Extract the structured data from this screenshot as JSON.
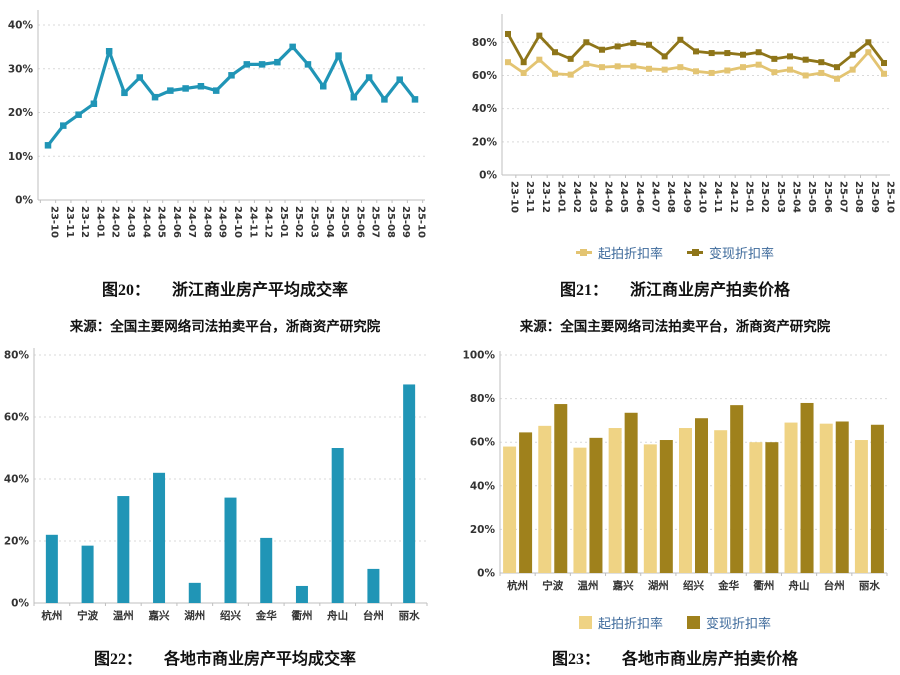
{
  "page": {
    "background": "#FFFFFF"
  },
  "colors": {
    "teal": "#2095B6",
    "gold_light_line": "#E3C472",
    "gold_dark_line": "#8E7519",
    "gold_light_bar": "#EFD384",
    "gold_dark_bar": "#9F811C",
    "legend_text": "#3E6A9B",
    "grid": "#D9D9D9",
    "axis": "#BFBFBF",
    "tick_text": "#333333",
    "caption_text": "#111111"
  },
  "figures": {
    "fig20": {
      "label": "图20：",
      "title": "浙江商业房产平均成交率",
      "source": "来源：全国主要网络司法拍卖平台，浙商资产研究院"
    },
    "fig21": {
      "label": "图21：",
      "title": "浙江商业房产拍卖价格",
      "source": "来源：全国主要网络司法拍卖平台，浙商资产研究院"
    },
    "fig22": {
      "label": "图22：",
      "title": "各地市商业房产平均成交率"
    },
    "fig23": {
      "label": "图23：",
      "title": "各地市商业房产拍卖价格"
    }
  },
  "chart_data": [
    {
      "id": "chart20",
      "type": "line",
      "title": "浙江商业房产平均成交率",
      "x": [
        "23-10",
        "23-11",
        "23-12",
        "24-01",
        "24-02",
        "24-03",
        "24-04",
        "24-05",
        "24-06",
        "24-07",
        "24-08",
        "24-09",
        "24-10",
        "24-11",
        "24-12",
        "25-01",
        "25-02",
        "25-03",
        "25-04",
        "25-05",
        "25-06",
        "25-07",
        "25-08",
        "25-09",
        "25-10"
      ],
      "series": [
        {
          "color": "#2095B6",
          "values": [
            12.5,
            17,
            19.5,
            22,
            34,
            24.5,
            28,
            23.5,
            25,
            25.5,
            26,
            25,
            28.5,
            31,
            31,
            31.5,
            35,
            31,
            26,
            33,
            23.5,
            28,
            23,
            27.5,
            23
          ]
        }
      ],
      "ylim": [
        0,
        40
      ],
      "yticks": [
        0,
        10,
        20,
        30,
        40
      ],
      "ytick_format": "percent",
      "grid": true,
      "legend": false
    },
    {
      "id": "chart21",
      "type": "line",
      "title": "浙江商业房产拍卖价格",
      "x": [
        "23-10",
        "23-11",
        "23-12",
        "24-01",
        "24-02",
        "24-03",
        "24-04",
        "24-05",
        "24-06",
        "24-07",
        "24-08",
        "24-09",
        "24-10",
        "24-11",
        "24-12",
        "25-01",
        "25-02",
        "25-03",
        "25-04",
        "25-05",
        "25-06",
        "25-07",
        "25-08",
        "25-09",
        "25-10"
      ],
      "series": [
        {
          "name": "起拍折扣率",
          "color": "#E3C472",
          "values": [
            68,
            61.5,
            69.5,
            61,
            60.5,
            67,
            65,
            65.5,
            65.5,
            64,
            63.5,
            65,
            62.5,
            61.5,
            63,
            65,
            66.5,
            62,
            63.5,
            60,
            61.5,
            58,
            63.5,
            74,
            61
          ]
        },
        {
          "name": "变现折扣率",
          "color": "#8E7519",
          "values": [
            85,
            68,
            84,
            74,
            70,
            80,
            75.5,
            77.5,
            79.5,
            78.5,
            71.5,
            81.5,
            74.5,
            73.5,
            73.5,
            72.5,
            74,
            70,
            71.5,
            69.5,
            68,
            65,
            72.5,
            80,
            67.5
          ]
        }
      ],
      "ylim": [
        0,
        88
      ],
      "yticks": [
        0,
        20,
        40,
        60,
        80
      ],
      "ytick_format": "percent",
      "grid": true,
      "legend": true,
      "legend_position": "bottom"
    },
    {
      "id": "chart22",
      "type": "bar",
      "title": "各地市商业房产平均成交率",
      "categories": [
        "杭州",
        "宁波",
        "温州",
        "嘉兴",
        "湖州",
        "绍兴",
        "金华",
        "衢州",
        "舟山",
        "台州",
        "丽水"
      ],
      "series": [
        {
          "color": "#2095B6",
          "values": [
            22,
            18.5,
            34.5,
            42,
            6.5,
            34,
            21,
            5.5,
            50,
            11,
            70.5
          ]
        }
      ],
      "ylim": [
        0,
        80
      ],
      "yticks": [
        0,
        20,
        40,
        60,
        80
      ],
      "ytick_format": "percent",
      "grid": true,
      "legend": false
    },
    {
      "id": "chart23",
      "type": "bar",
      "title": "各地市商业房产拍卖价格",
      "categories": [
        "杭州",
        "宁波",
        "温州",
        "嘉兴",
        "湖州",
        "绍兴",
        "金华",
        "衢州",
        "舟山",
        "台州",
        "丽水"
      ],
      "series": [
        {
          "name": "起拍折扣率",
          "color": "#EFD384",
          "values": [
            58,
            67.5,
            57.5,
            66.5,
            59,
            66.5,
            65.5,
            60,
            69,
            68.5,
            61
          ]
        },
        {
          "name": "变现折扣率",
          "color": "#9F811C",
          "values": [
            64.5,
            77.5,
            62,
            73.5,
            61,
            71,
            77,
            60,
            78,
            69.5,
            68
          ]
        }
      ],
      "ylim": [
        0,
        100
      ],
      "yticks": [
        0,
        20,
        40,
        60,
        80,
        100
      ],
      "ytick_format": "percent",
      "grid": true,
      "legend": true,
      "legend_position": "bottom"
    }
  ]
}
